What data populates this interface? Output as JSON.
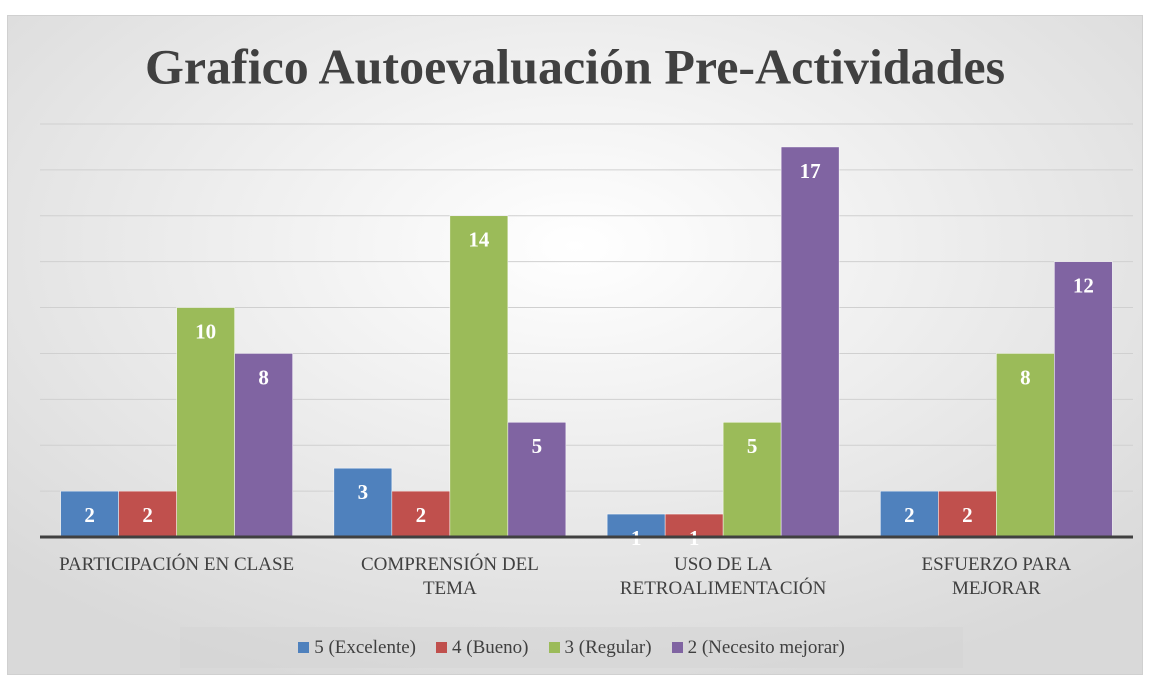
{
  "chart_data": {
    "type": "bar",
    "title": "Grafico Autoevaluación Pre-Actividades",
    "categories": [
      "PARTICIPACIÓN EN CLASE",
      "COMPRENSIÓN DEL TEMA",
      "USO DE LA RETROALIMENTACIÓN",
      "ESFUERZO PARA MEJORAR"
    ],
    "series": [
      {
        "name": "5 (Excelente)",
        "color": "#4f81bd",
        "values": [
          2,
          3,
          1,
          2
        ]
      },
      {
        "name": "4 (Bueno)",
        "color": "#c0504d",
        "values": [
          2,
          2,
          1,
          2
        ]
      },
      {
        "name": "3 (Regular)",
        "color": "#9bbb59",
        "values": [
          10,
          14,
          5,
          8
        ]
      },
      {
        "name": "2 (Necesito mejorar)",
        "color": "#8064a2",
        "values": [
          8,
          5,
          17,
          12
        ]
      }
    ],
    "ylim": [
      0,
      18
    ],
    "yticks": [
      0,
      2,
      4,
      6,
      8,
      10,
      12,
      14,
      16,
      18
    ],
    "grid": true,
    "legend": "bottom"
  }
}
